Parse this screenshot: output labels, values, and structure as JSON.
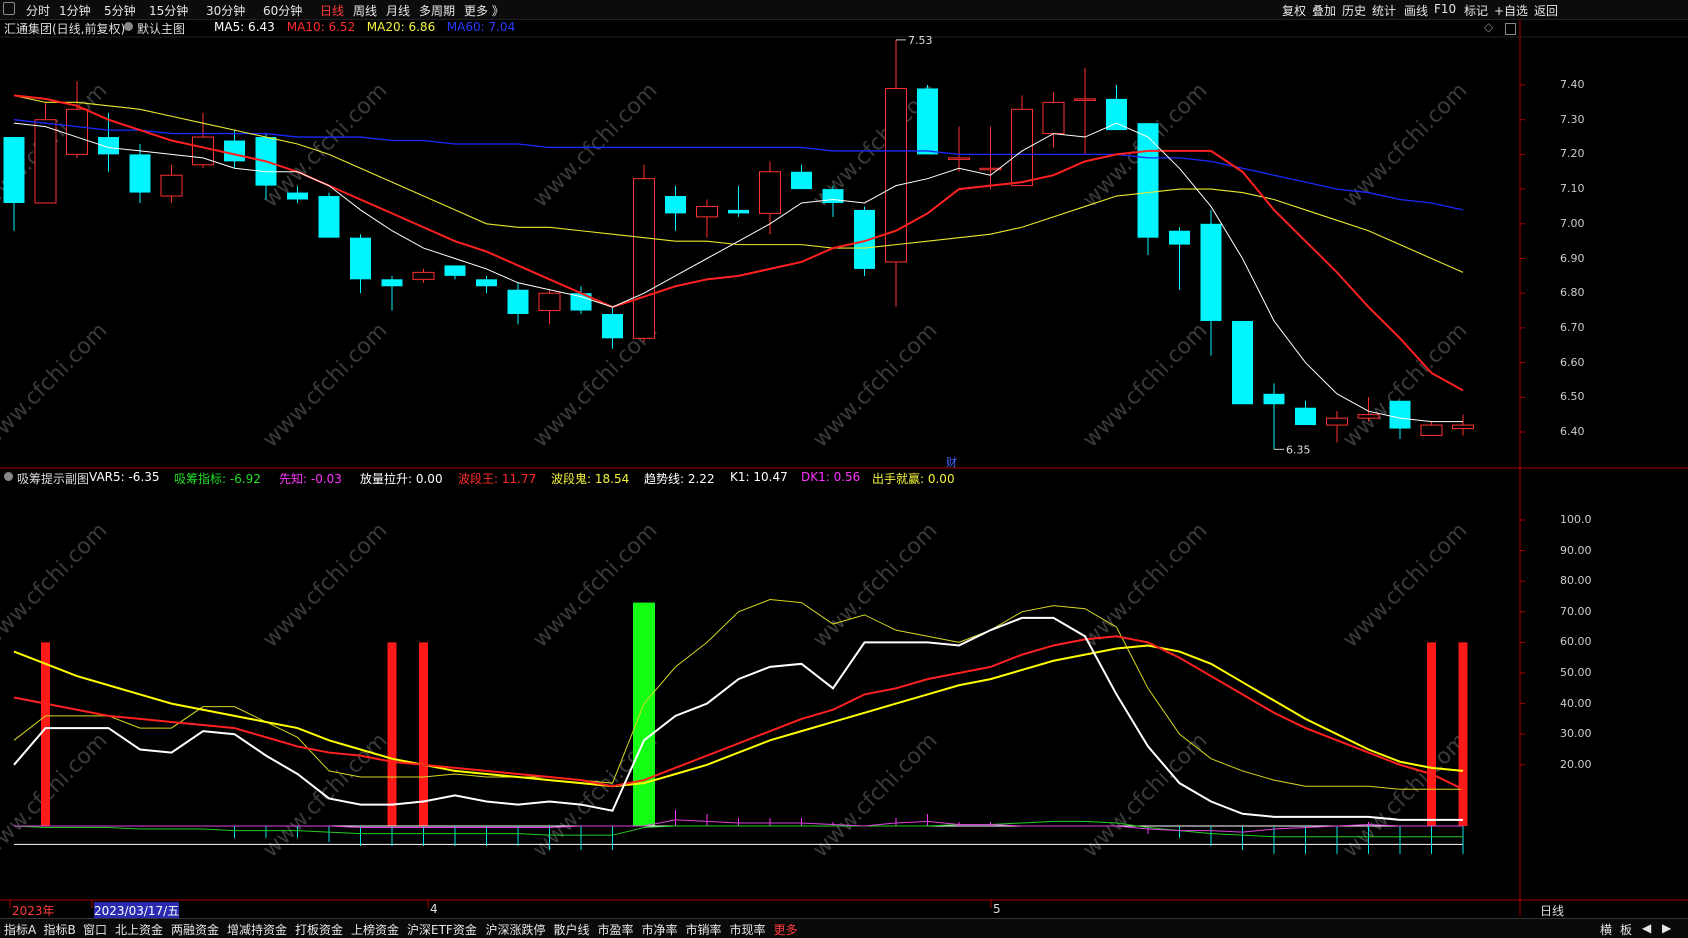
{
  "toolbar": {
    "periods": [
      "分时",
      "1分钟",
      "5分钟",
      "15分钟",
      "30分钟",
      "60分钟",
      "日线",
      "周线",
      "月线",
      "多周期",
      "更多 》"
    ],
    "active_period": "日线",
    "right_items": [
      "复权",
      "叠加",
      "历史",
      "统计",
      "画线",
      "F10",
      "标记",
      "+自选",
      "返回"
    ]
  },
  "main_chart": {
    "title": "汇通集团(日线,前复权)",
    "template": "默认主图",
    "ma_labels": [
      {
        "text": "MA5: 6.43",
        "color": "#ffffff"
      },
      {
        "text": "MA10: 6.52",
        "color": "#ff2a2a"
      },
      {
        "text": "MA20: 6.86",
        "color": "#f5f53c"
      },
      {
        "text": "MA60: 7.04",
        "color": "#2a3cff"
      }
    ],
    "y_ticks": [
      "7.40",
      "7.30",
      "7.20",
      "7.10",
      "7.00",
      "6.90",
      "6.80",
      "6.70",
      "6.60",
      "6.50",
      "6.40"
    ],
    "high_label": "7.53",
    "low_label": "6.35",
    "marker": "财",
    "colors": {
      "up": "#ff3030",
      "down": "#00f5ff",
      "ma5": "#ffffff",
      "ma10": "#ff2020",
      "ma20": "#e8e830",
      "ma60": "#1a2aff"
    }
  },
  "sub_chart": {
    "title": "吸筹提示副图",
    "labels": [
      {
        "text": "VAR5: -6.35",
        "color": "#ffffff"
      },
      {
        "text": "吸筹指标: -6.92",
        "color": "#22dd22"
      },
      {
        "text": "先知: -0.03",
        "color": "#ff33ff"
      },
      {
        "text": "放量拉升: 0.00",
        "color": "#ffffff"
      },
      {
        "text": "波段王: 11.77",
        "color": "#ff2a2a"
      },
      {
        "text": "波段鬼: 18.54",
        "color": "#f5f53c"
      },
      {
        "text": "趋势线: 2.22",
        "color": "#ffffff"
      },
      {
        "text": "K1: 10.47",
        "color": "#ffffff"
      },
      {
        "text": "DK1: 0.56",
        "color": "#ff33ff"
      },
      {
        "text": "出手就赢: 0.00",
        "color": "#f5f53c"
      }
    ],
    "y_ticks": [
      "100.0",
      "90.00",
      "80.00",
      "70.00",
      "60.00",
      "50.00",
      "40.00",
      "30.00",
      "20.00"
    ]
  },
  "date_axis": {
    "items": [
      "2023年",
      "2023/03/17/五",
      "4",
      "5"
    ],
    "right_label": "日线"
  },
  "bottom_tabs": [
    "指标A",
    "指标B",
    "窗口",
    "北上资金",
    "两融资金",
    "增减持资金",
    "打板资金",
    "上榜资金",
    "沪深ETF资金",
    "沪深涨跌停",
    "散户线",
    "市盈率",
    "市净率",
    "市销率",
    "市现率",
    "更多"
  ],
  "bottom_right": [
    "横",
    "板",
    "◀",
    "▶"
  ],
  "watermark": "www.cfchi.com",
  "candles": [
    {
      "o": 7.25,
      "c": 7.06,
      "h": 7.25,
      "l": 6.98
    },
    {
      "o": 7.06,
      "c": 7.3,
      "h": 7.35,
      "l": 7.06
    },
    {
      "o": 7.2,
      "c": 7.33,
      "h": 7.41,
      "l": 7.19
    },
    {
      "o": 7.25,
      "c": 7.2,
      "h": 7.32,
      "l": 7.15
    },
    {
      "o": 7.2,
      "c": 7.09,
      "h": 7.23,
      "l": 7.06
    },
    {
      "o": 7.08,
      "c": 7.14,
      "h": 7.17,
      "l": 7.06
    },
    {
      "o": 7.17,
      "c": 7.25,
      "h": 7.32,
      "l": 7.16
    },
    {
      "o": 7.24,
      "c": 7.18,
      "h": 7.27,
      "l": 7.16
    },
    {
      "o": 7.25,
      "c": 7.11,
      "h": 7.26,
      "l": 7.07
    },
    {
      "o": 7.09,
      "c": 7.07,
      "h": 7.11,
      "l": 7.06
    },
    {
      "o": 7.08,
      "c": 6.96,
      "h": 7.09,
      "l": 6.96
    },
    {
      "o": 6.96,
      "c": 6.84,
      "h": 6.97,
      "l": 6.8
    },
    {
      "o": 6.84,
      "c": 6.82,
      "h": 6.85,
      "l": 6.75
    },
    {
      "o": 6.84,
      "c": 6.86,
      "h": 6.87,
      "l": 6.83
    },
    {
      "o": 6.88,
      "c": 6.85,
      "h": 6.88,
      "l": 6.84
    },
    {
      "o": 6.84,
      "c": 6.82,
      "h": 6.85,
      "l": 6.8
    },
    {
      "o": 6.81,
      "c": 6.74,
      "h": 6.83,
      "l": 6.71
    },
    {
      "o": 6.75,
      "c": 6.8,
      "h": 6.81,
      "l": 6.71
    },
    {
      "o": 6.8,
      "c": 6.75,
      "h": 6.82,
      "l": 6.74
    },
    {
      "o": 6.74,
      "c": 6.67,
      "h": 6.76,
      "l": 6.64
    },
    {
      "o": 6.67,
      "c": 7.13,
      "h": 7.17,
      "l": 6.66
    },
    {
      "o": 7.08,
      "c": 7.03,
      "h": 7.11,
      "l": 6.98
    },
    {
      "o": 7.02,
      "c": 7.05,
      "h": 7.07,
      "l": 6.96
    },
    {
      "o": 7.04,
      "c": 7.03,
      "h": 7.11,
      "l": 7.02
    },
    {
      "o": 7.03,
      "c": 7.15,
      "h": 7.18,
      "l": 6.97
    },
    {
      "o": 7.15,
      "c": 7.1,
      "h": 7.17,
      "l": 7.1
    },
    {
      "o": 7.1,
      "c": 7.06,
      "h": 7.11,
      "l": 7.02
    },
    {
      "o": 7.04,
      "c": 6.87,
      "h": 7.05,
      "l": 6.85
    },
    {
      "o": 6.89,
      "c": 7.39,
      "h": 7.53,
      "l": 6.76
    },
    {
      "o": 7.39,
      "c": 7.2,
      "h": 7.4,
      "l": 7.2
    },
    {
      "o": 7.19,
      "c": 7.19,
      "h": 7.28,
      "l": 7.15
    },
    {
      "o": 7.16,
      "c": 7.16,
      "h": 7.28,
      "l": 7.1
    },
    {
      "o": 7.11,
      "c": 7.33,
      "h": 7.37,
      "l": 7.11
    },
    {
      "o": 7.26,
      "c": 7.35,
      "h": 7.38,
      "l": 7.22
    },
    {
      "o": 7.36,
      "c": 7.36,
      "h": 7.45,
      "l": 7.2
    },
    {
      "o": 7.36,
      "c": 7.27,
      "h": 7.4,
      "l": 7.27
    },
    {
      "o": 7.29,
      "c": 6.96,
      "h": 7.29,
      "l": 6.91
    },
    {
      "o": 6.98,
      "c": 6.94,
      "h": 6.99,
      "l": 6.81
    },
    {
      "o": 7.0,
      "c": 6.72,
      "h": 7.04,
      "l": 6.62
    },
    {
      "o": 6.72,
      "c": 6.48,
      "h": 6.72,
      "l": 6.48
    },
    {
      "o": 6.51,
      "c": 6.48,
      "h": 6.54,
      "l": 6.35
    },
    {
      "o": 6.47,
      "c": 6.42,
      "h": 6.49,
      "l": 6.42
    },
    {
      "o": 6.42,
      "c": 6.44,
      "h": 6.46,
      "l": 6.37
    },
    {
      "o": 6.44,
      "c": 6.45,
      "h": 6.5,
      "l": 6.43
    },
    {
      "o": 6.49,
      "c": 6.41,
      "h": 6.49,
      "l": 6.38
    },
    {
      "o": 6.39,
      "c": 6.42,
      "h": 6.43,
      "l": 6.39
    },
    {
      "o": 6.41,
      "c": 6.42,
      "h": 6.45,
      "l": 6.39
    }
  ],
  "ma_series": {
    "ma5": [
      7.29,
      7.28,
      7.25,
      7.22,
      7.21,
      7.2,
      7.19,
      7.16,
      7.15,
      7.15,
      7.11,
      7.04,
      6.98,
      6.93,
      6.9,
      6.87,
      6.83,
      6.81,
      6.79,
      6.76,
      6.8,
      6.85,
      6.9,
      6.95,
      7.0,
      7.06,
      7.07,
      7.06,
      7.11,
      7.13,
      7.16,
      7.14,
      7.21,
      7.26,
      7.25,
      7.29,
      7.25,
      7.16,
      7.05,
      6.9,
      6.72,
      6.6,
      6.51,
      6.46,
      6.44,
      6.43,
      6.43
    ],
    "ma10": [
      7.37,
      7.36,
      7.34,
      7.3,
      7.27,
      7.24,
      7.22,
      7.2,
      7.18,
      7.15,
      7.11,
      7.07,
      7.03,
      6.99,
      6.95,
      6.92,
      6.88,
      6.84,
      6.8,
      6.76,
      6.79,
      6.82,
      6.84,
      6.85,
      6.87,
      6.89,
      6.93,
      6.95,
      6.98,
      7.03,
      7.1,
      7.11,
      7.12,
      7.14,
      7.18,
      7.2,
      7.21,
      7.21,
      7.21,
      7.15,
      7.04,
      6.95,
      6.86,
      6.76,
      6.67,
      6.57,
      6.52
    ],
    "ma20": [
      7.37,
      7.35,
      7.35,
      7.34,
      7.33,
      7.31,
      7.29,
      7.27,
      7.25,
      7.23,
      7.2,
      7.16,
      7.12,
      7.08,
      7.04,
      7.0,
      6.99,
      6.99,
      6.98,
      6.97,
      6.96,
      6.95,
      6.95,
      6.94,
      6.94,
      6.94,
      6.93,
      6.93,
      6.94,
      6.95,
      6.96,
      6.97,
      6.99,
      7.02,
      7.05,
      7.08,
      7.09,
      7.1,
      7.1,
      7.09,
      7.07,
      7.04,
      7.01,
      6.98,
      6.94,
      6.9,
      6.86
    ],
    "ma60": [
      7.3,
      7.29,
      7.28,
      7.27,
      7.27,
      7.26,
      7.26,
      7.26,
      7.26,
      7.25,
      7.25,
      7.25,
      7.24,
      7.24,
      7.23,
      7.23,
      7.23,
      7.22,
      7.22,
      7.22,
      7.22,
      7.22,
      7.22,
      7.22,
      7.22,
      7.22,
      7.21,
      7.21,
      7.21,
      7.21,
      7.2,
      7.2,
      7.2,
      7.2,
      7.2,
      7.2,
      7.19,
      7.19,
      7.18,
      7.16,
      7.14,
      7.12,
      7.1,
      7.09,
      7.07,
      7.06,
      7.04
    ]
  },
  "sub_series": {
    "var5": [
      20,
      32,
      32,
      32,
      25,
      24,
      31,
      30,
      23,
      17,
      9,
      7,
      7,
      8,
      10,
      8,
      7,
      8,
      7,
      5,
      28,
      36,
      40,
      48,
      52,
      53,
      45,
      60,
      60,
      60,
      59,
      64,
      68,
      68,
      62,
      43,
      26,
      14,
      8,
      4,
      3,
      3,
      3,
      3,
      2,
      2,
      2
    ],
    "bdw": [
      42,
      40,
      38,
      36,
      35,
      34,
      33,
      32,
      29,
      26,
      24,
      23,
      21,
      20,
      19,
      18,
      17,
      16,
      15,
      13,
      15,
      19,
      23,
      27,
      31,
      35,
      38,
      43,
      45,
      48,
      50,
      52,
      56,
      59,
      61,
      62,
      60,
      55,
      49,
      43,
      37,
      32,
      28,
      24,
      20,
      17,
      12
    ],
    "bdg": [
      57,
      53,
      49,
      46,
      43,
      40,
      38,
      36,
      34,
      32,
      28,
      25,
      22,
      20,
      18,
      17,
      16,
      15,
      14,
      13,
      14,
      17,
      20,
      24,
      28,
      31,
      34,
      37,
      40,
      43,
      46,
      48,
      51,
      54,
      56,
      58,
      59,
      57,
      53,
      47,
      41,
      35,
      30,
      25,
      21,
      19,
      18
    ],
    "k1": [
      28,
      36,
      36,
      36,
      32,
      32,
      39,
      39,
      34,
      29,
      18,
      16,
      16,
      16,
      17,
      16,
      16,
      16,
      15,
      14,
      40,
      52,
      60,
      70,
      74,
      73,
      66,
      69,
      64,
      62,
      60,
      64,
      70,
      72,
      71,
      65,
      45,
      30,
      22,
      18,
      15,
      13,
      13,
      13,
      12,
      12,
      12
    ],
    "green": [
      0,
      -1,
      -1,
      -1,
      -2,
      -2,
      -2,
      -3,
      -3,
      -3,
      -4,
      -5,
      -5,
      -5,
      -5,
      -5,
      -5,
      -6,
      -6,
      -6,
      -1,
      0,
      0,
      0,
      0,
      0,
      0,
      0,
      0,
      0,
      1,
      1,
      2,
      3,
      3,
      2,
      -1,
      -3,
      -5,
      -6,
      -7,
      -7,
      -7,
      -7,
      -7,
      -7,
      -7
    ],
    "magenta": [
      0,
      0,
      0,
      0,
      0,
      0,
      0,
      0,
      0,
      0,
      0,
      -1,
      -1,
      -1,
      -1,
      -1,
      -1,
      -1,
      0,
      0,
      0,
      4,
      3,
      2,
      2,
      2,
      1,
      0,
      2,
      3,
      1,
      1,
      0,
      0,
      0,
      0,
      -2,
      -3,
      -3,
      -4,
      -2,
      -1,
      0,
      1,
      0,
      0,
      0
    ],
    "var5_flat": [
      0,
      0,
      0,
      0,
      0,
      0,
      0,
      0,
      0,
      0,
      0,
      0,
      0,
      0,
      0,
      0,
      0,
      0,
      0,
      0,
      0,
      0,
      0,
      0,
      0,
      0,
      0,
      0,
      0,
      0,
      0,
      0,
      0,
      0,
      0,
      0,
      0,
      0,
      0,
      0,
      0,
      0,
      0,
      0,
      0,
      0,
      0
    ],
    "red_bars": [
      1,
      12,
      13,
      45,
      46
    ],
    "green_bar": 20
  }
}
